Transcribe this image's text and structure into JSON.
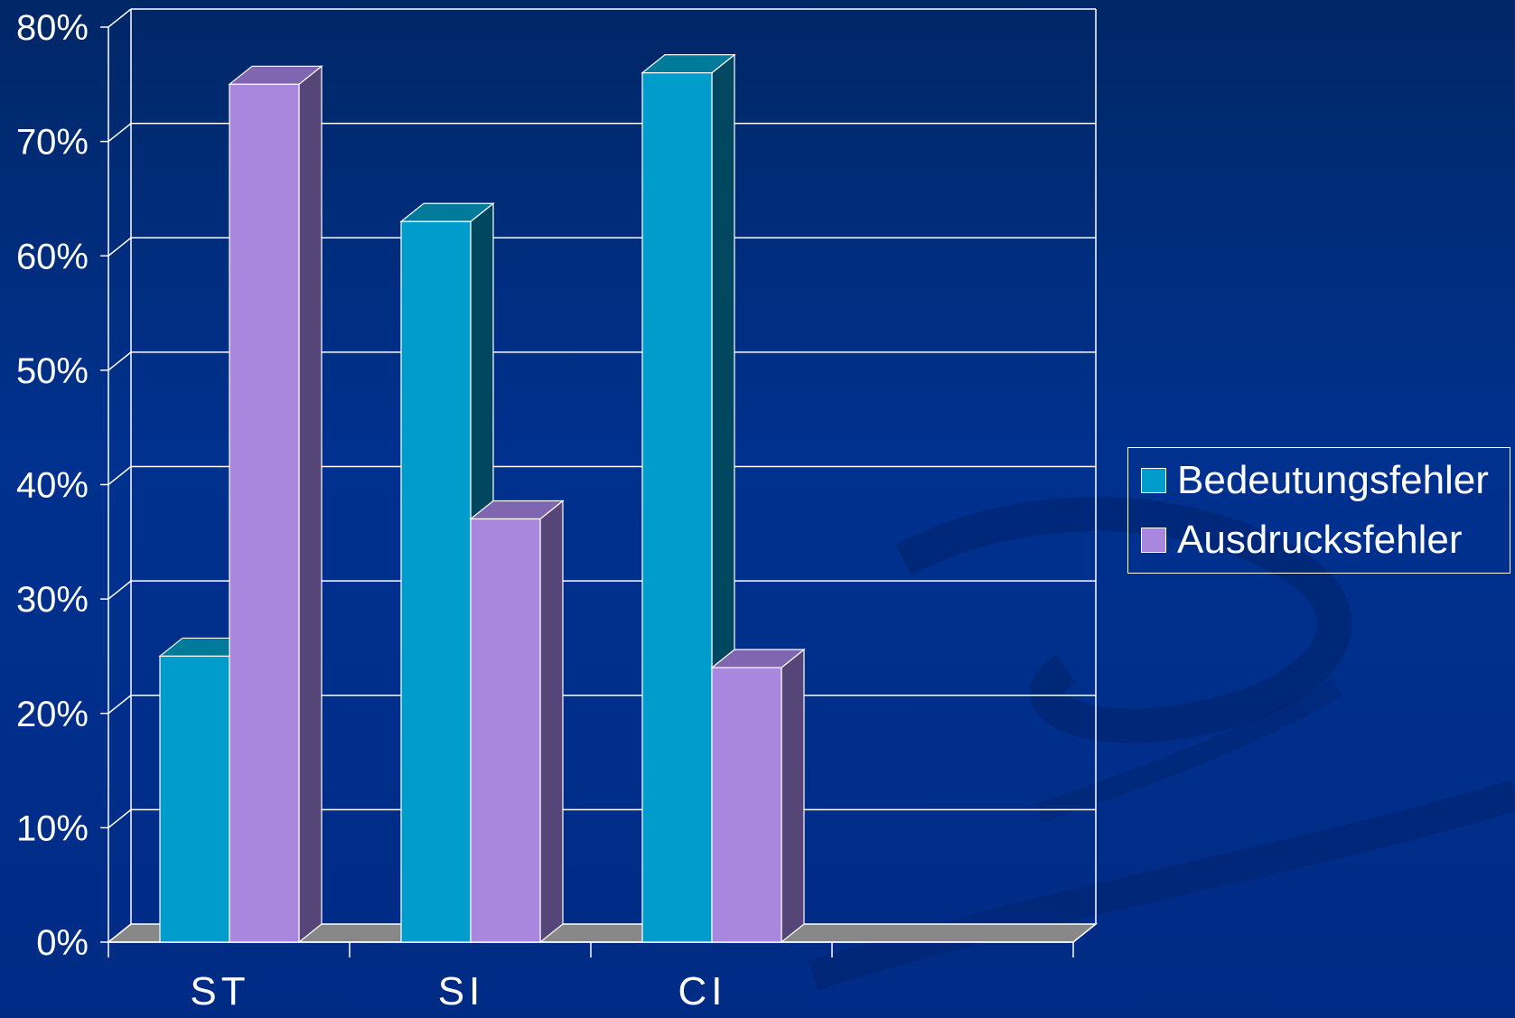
{
  "colors": {
    "background": "#002c87",
    "series_1": "#009ccc",
    "series_1_side": "#00475f",
    "series_1_top": "#007a9a",
    "series_2": "#a987df",
    "series_2_side": "#564577",
    "series_2_top": "#8066b0",
    "floor": "#888888",
    "gridline": "#ffffff"
  },
  "chart_data": {
    "type": "bar",
    "categories": [
      "ST",
      "SI",
      "CI"
    ],
    "series": [
      {
        "name": "Bedeutungsfehler",
        "values": [
          25,
          63,
          76
        ]
      },
      {
        "name": "Ausdrucksfehler",
        "values": [
          75,
          37,
          24
        ]
      }
    ],
    "y_ticks": [
      "0%",
      "10%",
      "20%",
      "30%",
      "40%",
      "50%",
      "60%",
      "70%",
      "80%"
    ],
    "ylim": [
      0,
      80
    ],
    "y_unit": "%",
    "grid": true,
    "legend_position": "right",
    "style": "3d-clustered-column"
  }
}
